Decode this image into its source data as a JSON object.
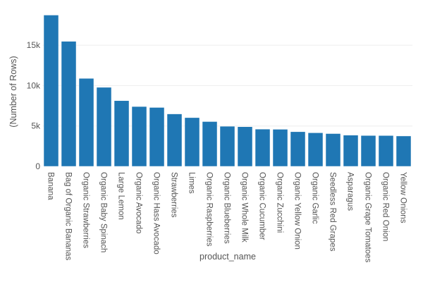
{
  "chart_data": {
    "type": "bar",
    "title": "",
    "xlabel": "product_name",
    "ylabel": "(Number of Rows)",
    "ylim": [
      0,
      19000
    ],
    "yticks": [
      0,
      5000,
      10000,
      15000
    ],
    "ytick_labels": [
      "0",
      "5k",
      "10k",
      "15k"
    ],
    "grid": true,
    "legend": null,
    "bar_color": "#1f77b4",
    "categories": [
      "Banana",
      "Bag of Organic Bananas",
      "Organic Strawberries",
      "Organic Baby Spinach",
      "Large Lemon",
      "Organic Avocado",
      "Organic Hass Avocado",
      "Strawberries",
      "Limes",
      "Organic Raspberries",
      "Organic Blueberries",
      "Organic Whole Milk",
      "Organic Cucumber",
      "Organic Zucchini",
      "Organic Yellow Onion",
      "Organic Garlic",
      "Seedless Red Grapes",
      "Asparagus",
      "Organic Grape Tomatoes",
      "Organic Red Onion",
      "Yellow Onions"
    ],
    "values": [
      18726,
      15480,
      10894,
      9784,
      8135,
      7409,
      7293,
      6494,
      6033,
      5546,
      4966,
      4908,
      4613,
      4589,
      4290,
      4158,
      4059,
      3868,
      3823,
      3818,
      3762
    ]
  }
}
